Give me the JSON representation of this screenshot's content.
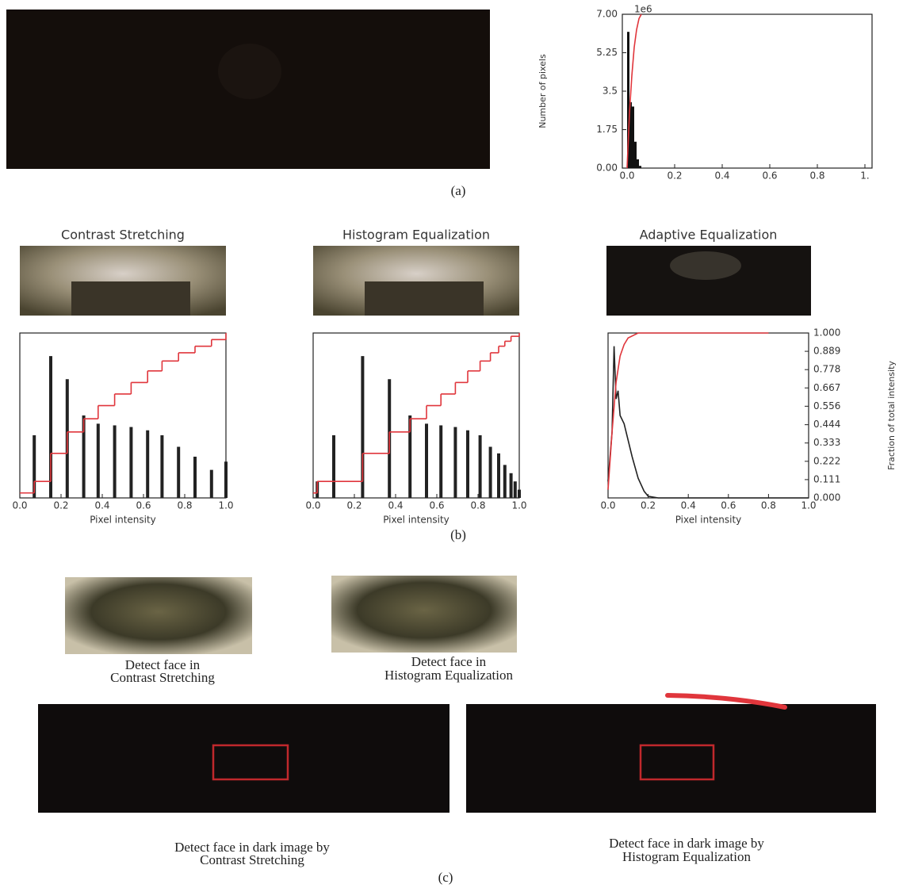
{
  "panel_labels": [
    "(a)",
    "(b)",
    "(c)"
  ],
  "face_captions": [
    [
      "Detect face in",
      "Contrast Stretching"
    ],
    [
      "Detect face in",
      "Histogram Equalization"
    ]
  ],
  "dark_captions": [
    [
      "Detect face in dark image by",
      "Contrast Stretching"
    ],
    [
      "Detect face in dark image by",
      "Histogram Equalization"
    ]
  ],
  "chart_data": [
    {
      "type": "histogram",
      "ylabel": "Number of pixels",
      "offset_text": "1e6",
      "xlim": [
        -0.02,
        1.03
      ],
      "ylim": [
        0,
        7
      ],
      "xticks": [
        {
          "value": 0,
          "label": "0.0"
        },
        0.2,
        0.4,
        0.6,
        0.8,
        {
          "value": 1,
          "label": "1."
        }
      ],
      "yticks": [
        {
          "value": 0,
          "label": "0.00"
        },
        1.75,
        3.5,
        5.25,
        {
          "value": 7,
          "label": "7.00"
        }
      ],
      "series": [
        {
          "type": "histogram",
          "color": "#111111",
          "bins": [
            0,
            0.01,
            0.02,
            0.03,
            0.04,
            0.05,
            0.06
          ],
          "values": [
            6.2,
            3.0,
            2.8,
            1.2,
            0.4,
            0.1
          ]
        },
        {
          "type": "line",
          "color": "#e0363c",
          "x": [
            0,
            0.01,
            0.02,
            0.03,
            0.04,
            0.05,
            0.06
          ],
          "values": [
            0,
            2.5,
            4.2,
            5.5,
            6.3,
            6.8,
            7
          ]
        }
      ]
    },
    {
      "type": "bar",
      "title": "Contrast Stretching",
      "xlabel": "Pixel intensity",
      "xlim": [
        0,
        1
      ],
      "ylim": [
        0,
        1
      ],
      "y2lim": [
        0,
        1
      ],
      "xticks": [
        {
          "value": 0,
          "label": "0.0"
        },
        0.2,
        0.4,
        0.6,
        0.8,
        {
          "value": 1,
          "label": "1.0"
        }
      ],
      "series": [
        {
          "type": "bar",
          "color": "#222222",
          "x": [
            0.07,
            0.15,
            0.23,
            0.31,
            0.38,
            0.46,
            0.54,
            0.62,
            0.69,
            0.77,
            0.85,
            0.93,
            1.0
          ],
          "values": [
            0.38,
            0.86,
            0.72,
            0.5,
            0.45,
            0.44,
            0.43,
            0.41,
            0.38,
            0.31,
            0.25,
            0.17,
            0.22
          ]
        },
        {
          "type": "step",
          "axis": "y2",
          "color": "#e0363c",
          "x": [
            0,
            0.07,
            0.15,
            0.23,
            0.31,
            0.38,
            0.46,
            0.54,
            0.62,
            0.69,
            0.77,
            0.85,
            0.93,
            1.0
          ],
          "values": [
            0.03,
            0.1,
            0.27,
            0.4,
            0.48,
            0.56,
            0.63,
            0.7,
            0.77,
            0.83,
            0.88,
            0.92,
            0.96,
            1.0
          ]
        }
      ]
    },
    {
      "type": "bar",
      "title": "Histogram Equalization",
      "xlabel": "Pixel intensity",
      "xlim": [
        0,
        1
      ],
      "ylim": [
        0,
        1
      ],
      "y2lim": [
        0,
        1
      ],
      "xticks": [
        {
          "value": 0,
          "label": "0.0"
        },
        0.2,
        0.4,
        0.6,
        0.8,
        {
          "value": 1,
          "label": "1.0"
        }
      ],
      "series": [
        {
          "type": "bar",
          "color": "#222222",
          "x": [
            0.02,
            0.1,
            0.24,
            0.37,
            0.47,
            0.55,
            0.62,
            0.69,
            0.75,
            0.81,
            0.86,
            0.9,
            0.93,
            0.96,
            0.98,
            1.0
          ],
          "values": [
            0.1,
            0.38,
            0.86,
            0.72,
            0.5,
            0.45,
            0.44,
            0.43,
            0.41,
            0.38,
            0.31,
            0.27,
            0.2,
            0.15,
            0.1,
            0.05
          ]
        },
        {
          "type": "step",
          "axis": "y2",
          "color": "#e0363c",
          "x": [
            0,
            0.02,
            0.1,
            0.24,
            0.37,
            0.47,
            0.55,
            0.62,
            0.69,
            0.75,
            0.81,
            0.86,
            0.9,
            0.93,
            0.96,
            1.0
          ],
          "values": [
            0.03,
            0.1,
            0.1,
            0.27,
            0.4,
            0.48,
            0.56,
            0.63,
            0.7,
            0.77,
            0.83,
            0.88,
            0.92,
            0.95,
            0.98,
            1.0
          ]
        }
      ]
    },
    {
      "type": "line",
      "title": "Adaptive Equalization",
      "xlabel": "Pixel intensity",
      "y2label": "Fraction of total intensity",
      "xlim": [
        0,
        1
      ],
      "ylim": [
        0,
        1
      ],
      "y2lim": [
        0,
        1
      ],
      "xticks": [
        {
          "value": 0,
          "label": "0.0"
        },
        0.2,
        0.4,
        0.6,
        0.8,
        {
          "value": 1,
          "label": "1.0"
        }
      ],
      "y2ticks": [
        {
          "value": 0,
          "label": "0.000"
        },
        0.111,
        0.222,
        0.333,
        0.444,
        0.556,
        0.667,
        0.778,
        0.889,
        {
          "value": 1,
          "label": "1.000"
        }
      ],
      "series": [
        {
          "type": "line",
          "color": "#222222",
          "x": [
            0,
            0.02,
            0.03,
            0.04,
            0.05,
            0.06,
            0.08,
            0.1,
            0.12,
            0.15,
            0.18,
            0.2,
            0.25,
            1.0
          ],
          "values": [
            0.1,
            0.4,
            0.92,
            0.6,
            0.65,
            0.5,
            0.45,
            0.35,
            0.25,
            0.12,
            0.04,
            0.01,
            0,
            0
          ]
        },
        {
          "type": "line",
          "axis": "y2",
          "color": "#e0363c",
          "x": [
            0,
            0.02,
            0.04,
            0.06,
            0.08,
            0.1,
            0.15,
            0.2,
            0.5,
            0.8
          ],
          "values": [
            0.05,
            0.4,
            0.7,
            0.86,
            0.93,
            0.97,
            1.0,
            1.0,
            1.0,
            1.0
          ]
        }
      ]
    }
  ]
}
